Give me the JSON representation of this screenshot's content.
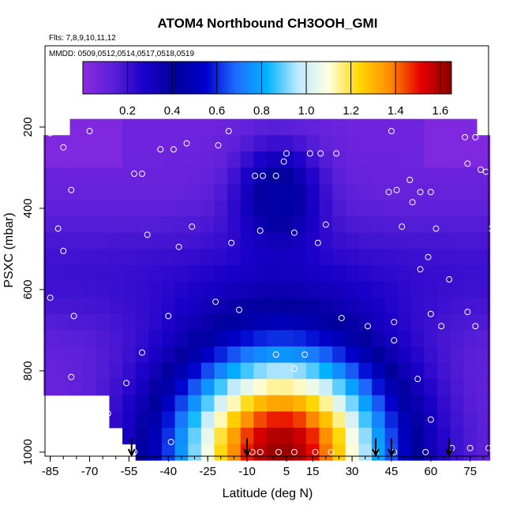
{
  "chart_data": {
    "type": "heatmap",
    "title": "ATOM4 Northbound CH3OOH_GMI",
    "annotations": {
      "flights": "Flts: 7,8,9,10,11,12",
      "dates": "MMDD: 0509,0512,0514,0517,0518,0519"
    },
    "xlabel": "Latitude (deg N)",
    "ylabel": "PSXC (mbar)",
    "xlim": [
      -87,
      82
    ],
    "ylim": [
      1010,
      0
    ],
    "x_tick_labels": [
      "-85",
      "-70",
      "-55",
      "-40",
      "-25",
      "-10",
      "5",
      "15",
      "30",
      "45",
      "60",
      "75"
    ],
    "y_tick_labels": [
      "200",
      "400",
      "600",
      "800",
      "1000"
    ],
    "colorbar": {
      "min": 0.0,
      "max": 1.65,
      "tick_labels": [
        "0.2",
        "0.4",
        "0.6",
        "0.8",
        "1.0",
        "1.2",
        "1.4",
        "1.6"
      ],
      "colors": [
        "#8a2be2",
        "#5a1fd8",
        "#1a00c8",
        "#00009a",
        "#0000cd",
        "#1e6eff",
        "#00b4ff",
        "#bfe9ff",
        "#ffffe0",
        "#ffd700",
        "#ff8c00",
        "#e60000",
        "#8b0000"
      ]
    },
    "latitude_bins": [
      -85,
      -80,
      -75,
      -70,
      -65,
      -60,
      -55,
      -50,
      -45,
      -40,
      -35,
      -30,
      -25,
      -20,
      -15,
      -10,
      -5,
      0,
      5,
      10,
      15,
      20,
      25,
      30,
      35,
      40,
      45,
      50,
      55,
      60,
      65,
      70,
      75,
      80
    ],
    "pressure_bins": [
      200,
      240,
      280,
      320,
      360,
      400,
      440,
      480,
      520,
      560,
      600,
      640,
      680,
      720,
      760,
      800,
      840,
      880,
      920,
      960,
      1000
    ],
    "values_description": "CH3OOH mixing ratio by latitude and pressure: low (about 0.05-0.3) above 400 mbar, highest (about 1.3-1.6) near the surface between 15S and 25N",
    "lower_boundary_deg": [
      -80,
      -78,
      -75,
      -70,
      -66,
      -62,
      -58,
      -55
    ],
    "upper_edge_pressure": 200,
    "arrows_latitude": [
      -54,
      -10,
      39,
      45,
      67
    ],
    "sample_points": [
      {
        "lat": -85,
        "p": 215
      },
      {
        "lat": -80,
        "p": 250
      },
      {
        "lat": -77,
        "p": 355
      },
      {
        "lat": -82,
        "p": 450
      },
      {
        "lat": -80,
        "p": 505
      },
      {
        "lat": -85,
        "p": 620
      },
      {
        "lat": -76,
        "p": 665
      },
      {
        "lat": -77,
        "p": 815
      },
      {
        "lat": -70,
        "p": 210
      },
      {
        "lat": -53,
        "p": 315
      },
      {
        "lat": -50,
        "p": 315
      },
      {
        "lat": -48,
        "p": 465
      },
      {
        "lat": -43,
        "p": 255
      },
      {
        "lat": -38,
        "p": 255
      },
      {
        "lat": -33,
        "p": 240
      },
      {
        "lat": -36,
        "p": 495
      },
      {
        "lat": -31,
        "p": 445
      },
      {
        "lat": -40,
        "p": 665
      },
      {
        "lat": -21,
        "p": 245
      },
      {
        "lat": -17,
        "p": 210
      },
      {
        "lat": -22,
        "p": 630
      },
      {
        "lat": -16,
        "p": 485
      },
      {
        "lat": -13,
        "p": 650
      },
      {
        "lat": -7,
        "p": 320
      },
      {
        "lat": -4,
        "p": 320
      },
      {
        "lat": -5,
        "p": 455
      },
      {
        "lat": 5,
        "p": 265
      },
      {
        "lat": 4,
        "p": 285
      },
      {
        "lat": 1,
        "p": 320
      },
      {
        "lat": 8,
        "p": 460
      },
      {
        "lat": 14,
        "p": 265
      },
      {
        "lat": 18,
        "p": 265
      },
      {
        "lat": 24,
        "p": 265
      },
      {
        "lat": 17,
        "p": 485
      },
      {
        "lat": 20,
        "p": 440
      },
      {
        "lat": 26,
        "p": 670
      },
      {
        "lat": 36,
        "p": 690
      },
      {
        "lat": 44,
        "p": 360
      },
      {
        "lat": 47,
        "p": 355
      },
      {
        "lat": 49,
        "p": 445
      },
      {
        "lat": 52,
        "p": 330
      },
      {
        "lat": 56,
        "p": 360
      },
      {
        "lat": 60,
        "p": 360
      },
      {
        "lat": 45,
        "p": 210
      },
      {
        "lat": 53,
        "p": 385
      },
      {
        "lat": 56,
        "p": 550
      },
      {
        "lat": 59,
        "p": 520
      },
      {
        "lat": 62,
        "p": 450
      },
      {
        "lat": 60,
        "p": 660
      },
      {
        "lat": 64,
        "p": 690
      },
      {
        "lat": 67,
        "p": 575
      },
      {
        "lat": 73,
        "p": 225
      },
      {
        "lat": 77,
        "p": 225
      },
      {
        "lat": 74,
        "p": 290
      },
      {
        "lat": 79,
        "p": 305
      },
      {
        "lat": 81,
        "p": 310
      },
      {
        "lat": 85,
        "p": 330
      },
      {
        "lat": 83,
        "p": 450
      },
      {
        "lat": 77,
        "p": 690
      },
      {
        "lat": 74,
        "p": 655
      },
      {
        "lat": 46,
        "p": 680
      },
      {
        "lat": 46,
        "p": 725
      },
      {
        "lat": 55,
        "p": 820
      },
      {
        "lat": 60,
        "p": 920
      },
      {
        "lat": -63,
        "p": 905
      },
      {
        "lat": -63,
        "p": 950
      },
      {
        "lat": -60,
        "p": 990
      },
      {
        "lat": -57,
        "p": 1000
      },
      {
        "lat": -53,
        "p": 1000
      },
      {
        "lat": -39,
        "p": 975
      },
      {
        "lat": -8,
        "p": 1000
      },
      {
        "lat": -5,
        "p": 1000
      },
      {
        "lat": 2,
        "p": 1000
      },
      {
        "lat": 8,
        "p": 1000
      },
      {
        "lat": 16,
        "p": 1000
      },
      {
        "lat": 22,
        "p": 1000
      },
      {
        "lat": 39,
        "p": 1000
      },
      {
        "lat": 46,
        "p": 1000
      },
      {
        "lat": 58,
        "p": 1000
      },
      {
        "lat": 68,
        "p": 990
      },
      {
        "lat": 75,
        "p": 990
      },
      {
        "lat": 82,
        "p": 990
      },
      {
        "lat": -50,
        "p": 755
      },
      {
        "lat": -56,
        "p": 830
      },
      {
        "lat": 8,
        "p": 795
      },
      {
        "lat": 1,
        "p": 760
      },
      {
        "lat": 12,
        "p": 760
      }
    ]
  }
}
